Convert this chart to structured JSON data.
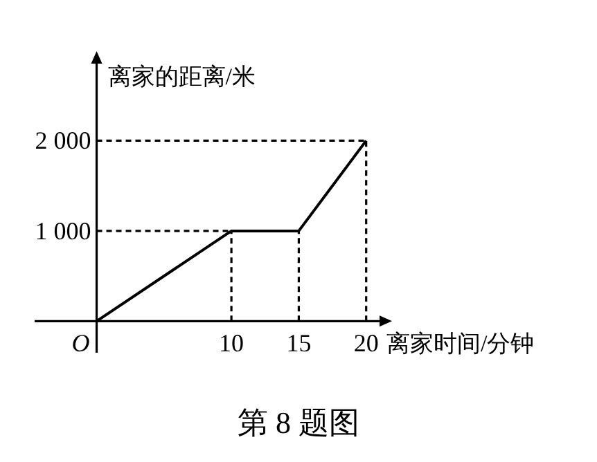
{
  "chart_data": {
    "type": "line",
    "title": "第 8 题图",
    "xlabel": "离家时间/分钟",
    "ylabel": "离家的距离/米",
    "x": [
      0,
      10,
      15,
      20
    ],
    "series": [
      {
        "color": "#000000",
        "values": [
          0,
          1000,
          1000,
          2000
        ]
      }
    ],
    "xlim": [
      -4.6,
      21.3
    ],
    "ylim": [
      -350,
      2900
    ],
    "xticks": [
      10,
      15,
      20
    ],
    "annotations": [
      {
        "text": "O",
        "x": 0,
        "y": 0
      }
    ],
    "yticks": [
      {
        "value": 1000,
        "label": "1 000"
      },
      {
        "value": 2000,
        "label": "2 000"
      }
    ],
    "ref_lines": [
      {
        "axis": "x",
        "value": 10,
        "line_style": "dashed"
      },
      {
        "axis": "x",
        "value": 15,
        "line_style": "dashed"
      },
      {
        "axis": "x",
        "value": 20,
        "line_style": "dashed"
      },
      {
        "axis": "y",
        "value": 1000,
        "line_style": "dashed"
      },
      {
        "axis": "y",
        "value": 2000,
        "line_style": "dashed"
      }
    ],
    "grid": false,
    "marker": "none",
    "line_style": "solid"
  }
}
